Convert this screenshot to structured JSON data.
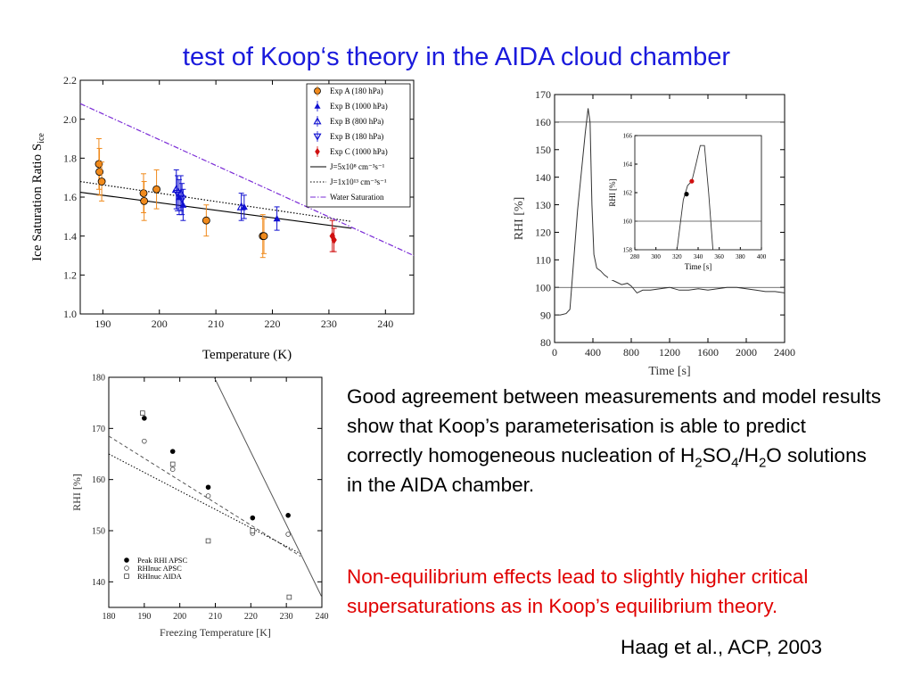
{
  "title": "test of Koop‘s theory in the AIDA cloud chamber",
  "description": {
    "p1_a": "Good agreement between measurements and model results show that Koop’s parameterisation is able to predict correctly homogeneous nucleation of H",
    "p1_sub1": "2",
    "p1_b": "SO",
    "p1_sub2": "4",
    "p1_c": "/H",
    "p1_sub3": "2",
    "p1_d": "O solutions in the AIDA chamber.",
    "p2": "Non-equilibrium effects lead to slightly higher critical supersaturations as in Koop’s equilibrium theory."
  },
  "citation": "Haag et al., ACP, 2003",
  "chart_data": [
    {
      "type": "scatter",
      "xlabel": "Temperature (K)",
      "ylabel": "Ice Saturation Ratio S",
      "ylabel_sub": "ice",
      "xlim": [
        186,
        245
      ],
      "ylim": [
        1.0,
        2.2
      ],
      "xticks": [
        "190",
        "200",
        "210",
        "220",
        "230",
        "240"
      ],
      "yticks": [
        "1.0",
        "1.2",
        "1.4",
        "1.6",
        "1.8",
        "2.0",
        "2.2"
      ],
      "legend_position": "top-right",
      "series": [
        {
          "name": "Exp A (180 hPa)",
          "color": "#f08a1c",
          "marker": "circle",
          "points": [
            [
              189.3,
              1.77,
              0.13
            ],
            [
              189.4,
              1.73,
              0.12
            ],
            [
              189.8,
              1.68,
              0.1
            ],
            [
              197.2,
              1.62,
              0.1
            ],
            [
              197.3,
              1.58,
              0.1
            ],
            [
              199.5,
              1.64,
              0.1
            ],
            [
              208.3,
              1.48,
              0.08
            ],
            [
              218.3,
              1.4,
              0.11
            ],
            [
              218.5,
              1.4,
              0.09
            ]
          ]
        },
        {
          "name": "Exp B (1000 hPa)",
          "color": "#1010d0",
          "marker": "triangle-up",
          "points": [
            [
              203.5,
              1.6,
              0.09
            ],
            [
              204.2,
              1.56,
              0.08
            ],
            [
              215.0,
              1.55,
              0.06
            ],
            [
              220.8,
              1.49,
              0.06
            ]
          ]
        },
        {
          "name": "Exp B (800 hPa)",
          "color": "#1010d0",
          "marker": "triangle-up-open",
          "points": [
            [
              203.0,
              1.64,
              0.1
            ],
            [
              203.8,
              1.62,
              0.09
            ],
            [
              214.5,
              1.55,
              0.07
            ]
          ]
        },
        {
          "name": "Exp B (180 hPa)",
          "color": "#1010d0",
          "marker": "triangle-down-open",
          "points": [
            [
              203.2,
              1.62,
              0.09
            ],
            [
              204.0,
              1.59,
              0.08
            ]
          ]
        },
        {
          "name": "Exp C (1000 hPa)",
          "color": "#d01010",
          "marker": "diamond",
          "points": [
            [
              230.6,
              1.4,
              0.08
            ],
            [
              230.9,
              1.38,
              0.06
            ]
          ]
        }
      ],
      "lines": [
        {
          "name": "J=5x10⁸ cm⁻³s⁻¹",
          "style": "solid",
          "color": "#000000",
          "x": [
            186,
            234
          ],
          "y": [
            1.625,
            1.44
          ]
        },
        {
          "name": "J=1x10¹³ cm⁻³s⁻¹",
          "style": "dotted",
          "color": "#000000",
          "x": [
            186,
            234
          ],
          "y": [
            1.68,
            1.475
          ]
        },
        {
          "name": "Water Saturation",
          "style": "dashdot",
          "color": "#7a2bd6",
          "x": [
            186,
            245
          ],
          "y": [
            2.08,
            1.3
          ]
        }
      ]
    },
    {
      "type": "line",
      "xlabel": "Time [s]",
      "ylabel": "RHI [%]",
      "xlim": [
        0,
        2400
      ],
      "ylim": [
        80,
        170
      ],
      "xticks": [
        "0",
        "400",
        "800",
        "1200",
        "1600",
        "2000",
        "2400"
      ],
      "yticks": [
        "80",
        "90",
        "100",
        "110",
        "120",
        "130",
        "140",
        "150",
        "160",
        "170"
      ],
      "hlines": [
        100,
        160
      ],
      "series": [
        {
          "name": "",
          "color": "#333333",
          "x": [
            0,
            60,
            120,
            160,
            200,
            240,
            280,
            320,
            350,
            370,
            390,
            410,
            440,
            480,
            520,
            580,
            640,
            700,
            760,
            800,
            860,
            920,
            1000,
            1100,
            1200,
            1300,
            1400,
            1500,
            1600,
            1700,
            1800,
            1900,
            2000,
            2100,
            2200,
            2300,
            2400
          ],
          "y": [
            90,
            90,
            90.5,
            92,
            110,
            128,
            142,
            156,
            165,
            160,
            130,
            112,
            107,
            106,
            104.5,
            103,
            102,
            101,
            101.5,
            100.5,
            98,
            99,
            99,
            99.5,
            100,
            99,
            99,
            99.5,
            99,
            99.5,
            100,
            100,
            99.5,
            99,
            98.5,
            98.5,
            98
          ]
        }
      ],
      "inset": {
        "xlabel": "Time [s]",
        "ylabel": "RHI [%]",
        "xlim": [
          280,
          400
        ],
        "ylim": [
          158,
          166
        ],
        "xticks": [
          "280",
          "300",
          "320",
          "340",
          "360",
          "380",
          "400"
        ],
        "yticks": [
          "158",
          "160",
          "162",
          "164",
          "166"
        ],
        "hline": 160,
        "x": [
          320,
          326,
          330,
          334,
          338,
          342,
          346,
          350,
          354,
          360,
          400
        ],
        "y": [
          158,
          161.5,
          162.5,
          162.8,
          164,
          165.3,
          165.3,
          162,
          158,
          158,
          158
        ],
        "markers": [
          {
            "x": 329,
            "y": 161.9,
            "color": "#000000"
          },
          {
            "x": 334,
            "y": 162.8,
            "color": "#d01010"
          }
        ]
      }
    },
    {
      "type": "scatter",
      "xlabel": "Freezing Temperature [K]",
      "ylabel": "RHI [%]",
      "xlim": [
        180,
        240
      ],
      "ylim": [
        135,
        180
      ],
      "xticks": [
        "180",
        "190",
        "200",
        "210",
        "220",
        "230",
        "240"
      ],
      "yticks": [
        "140",
        "150",
        "160",
        "170",
        "180"
      ],
      "legend_position": "bottom-left",
      "series": [
        {
          "name": "Peak RHI APSC",
          "marker": "filled-circle",
          "points": [
            [
              190.0,
              172.0
            ],
            [
              198.0,
              165.5
            ],
            [
              208.0,
              158.5
            ],
            [
              220.5,
              152.5
            ],
            [
              230.5,
              153.0
            ]
          ]
        },
        {
          "name": "RHInuc APSC",
          "marker": "open-circle",
          "points": [
            [
              190.0,
              167.5
            ],
            [
              198.0,
              162.0
            ],
            [
              208.0,
              156.8
            ],
            [
              220.5,
              149.5
            ],
            [
              230.5,
              149.3
            ]
          ]
        },
        {
          "name": "RHInuc AIDA",
          "marker": "open-square",
          "points": [
            [
              189.5,
              173.0
            ],
            [
              198.0,
              163.0
            ],
            [
              208.0,
              148.0
            ],
            [
              220.5,
              150.0
            ],
            [
              230.8,
              137.0
            ]
          ]
        }
      ],
      "lines": [
        {
          "style": "solid",
          "color": "#555555",
          "x": [
            209,
            240
          ],
          "y": [
            181,
            137
          ]
        },
        {
          "style": "dashed",
          "color": "#555555",
          "x": [
            180,
            234
          ],
          "y": [
            168.5,
            145.0
          ]
        },
        {
          "style": "dotted",
          "color": "#000000",
          "x": [
            180,
            234
          ],
          "y": [
            165.0,
            145.5
          ]
        }
      ]
    }
  ]
}
